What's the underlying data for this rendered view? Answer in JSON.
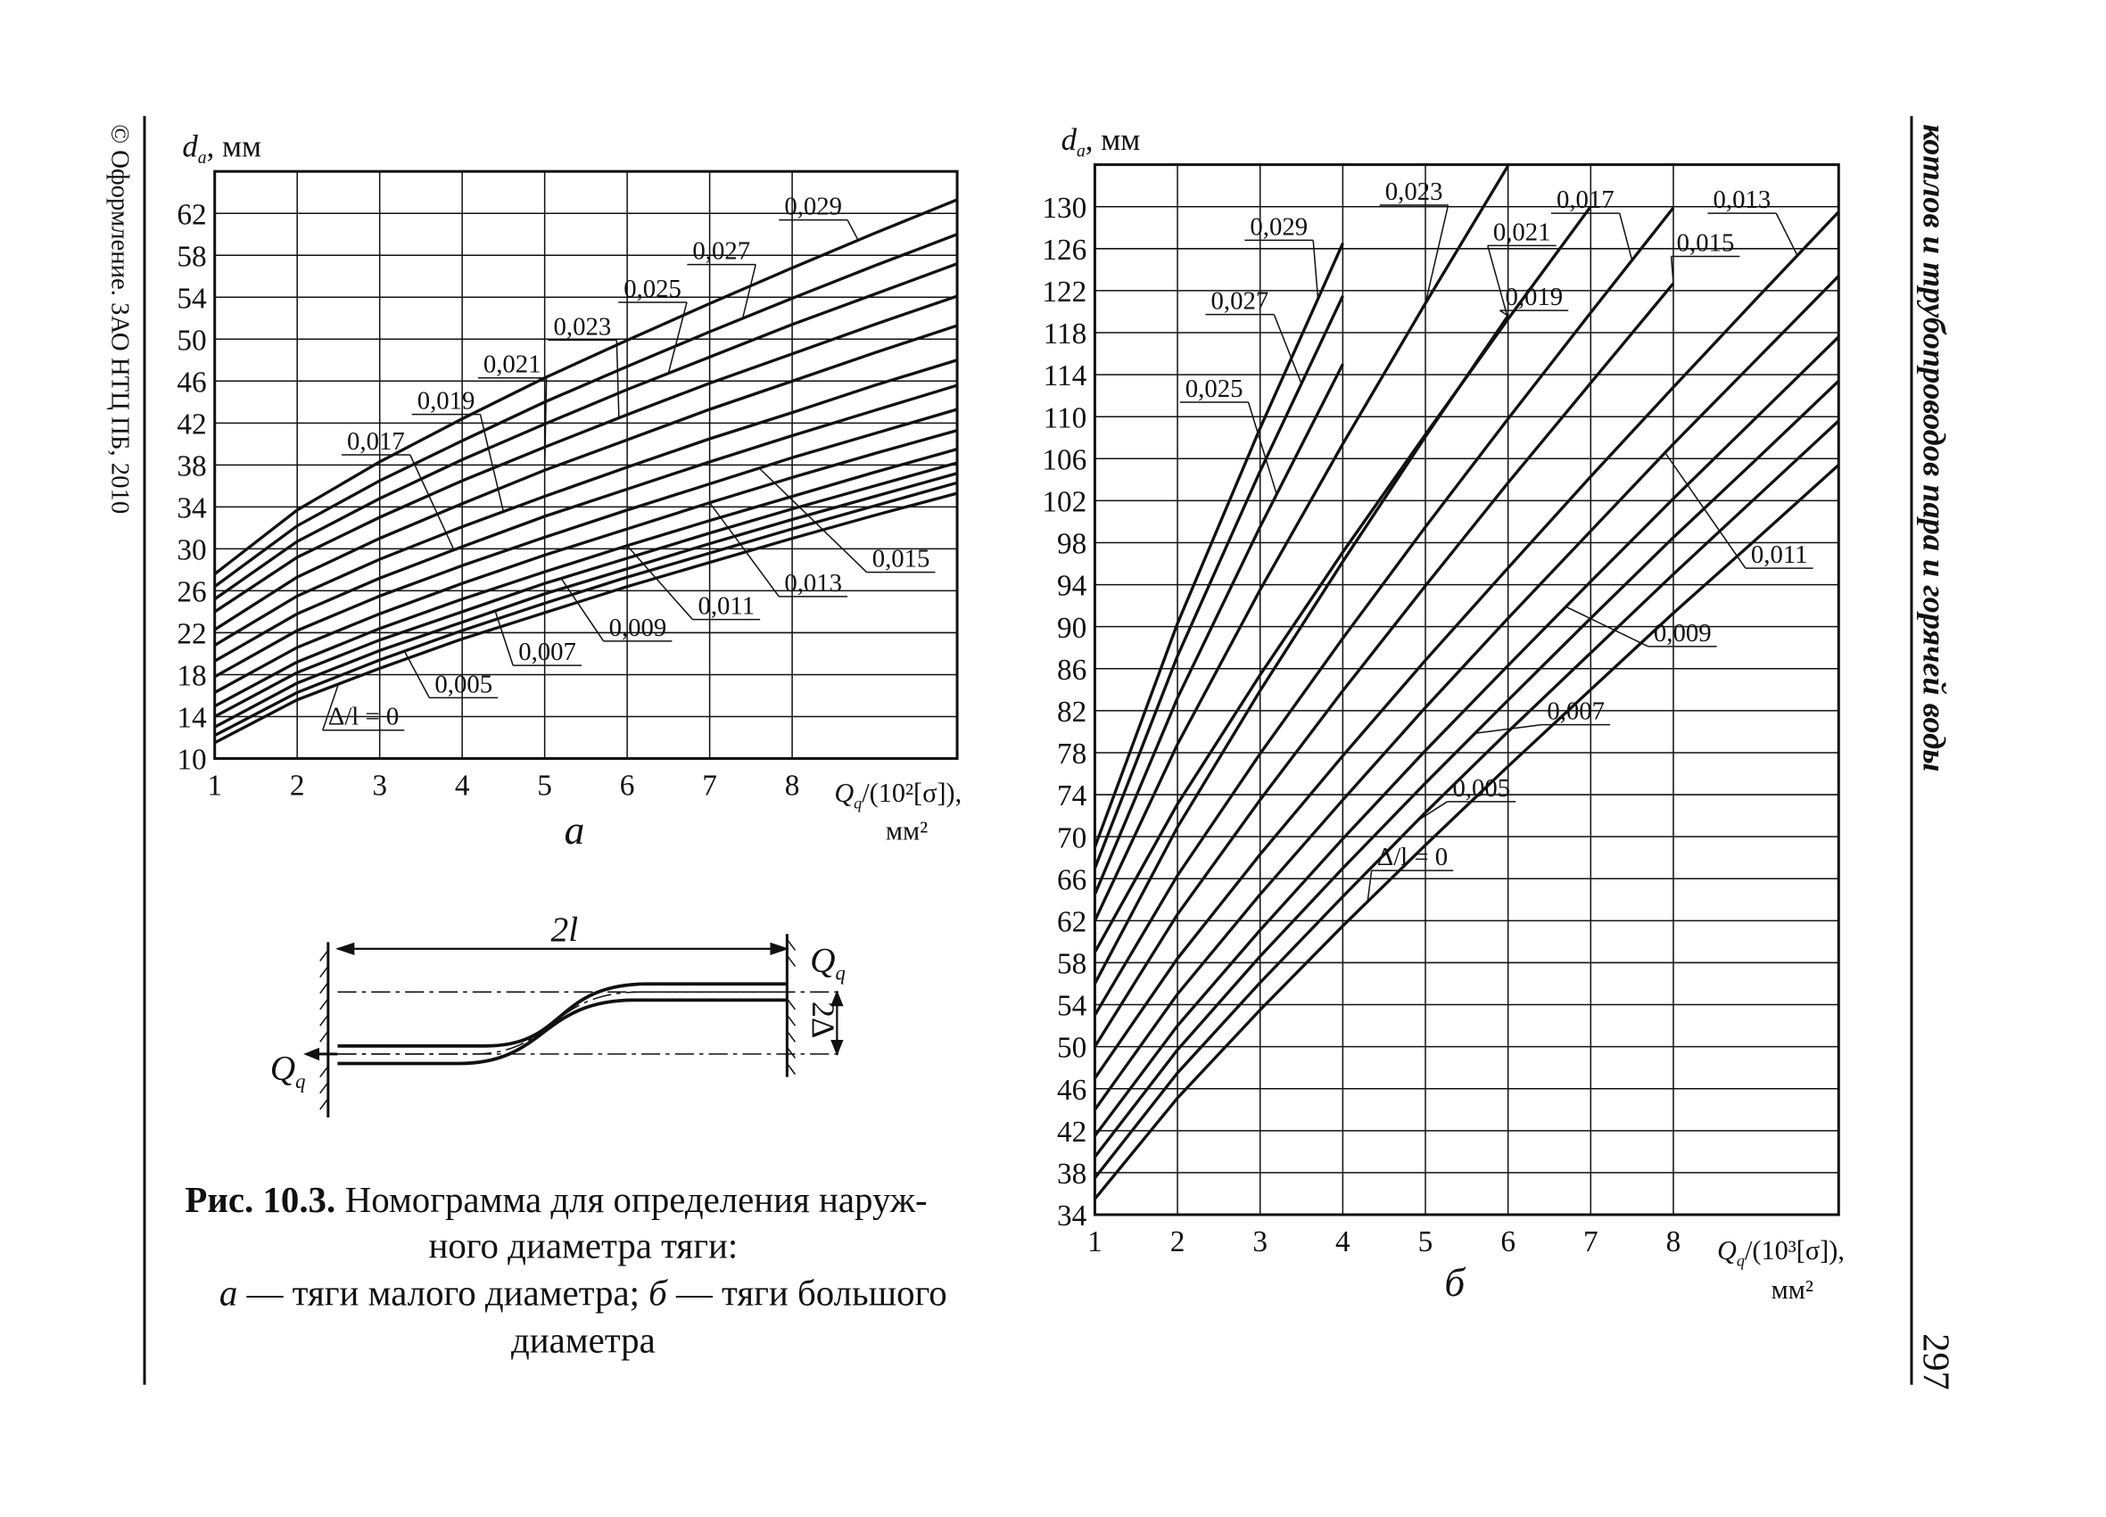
{
  "chart_data": [
    {
      "type": "line",
      "panel": "а",
      "ylabel": "d",
      "ylabel_sub": "a",
      "ylabel_unit": ", мм",
      "xlabel": "Q",
      "xlabel_sub": "q",
      "xlabel_rest": "/(10²[σ]),",
      "xlabel_unit": "мм²",
      "xlim": [
        1,
        10
      ],
      "ylim": [
        10,
        66
      ],
      "xticks": [
        1,
        2,
        3,
        4,
        5,
        6,
        7,
        8
      ],
      "yticks": [
        10,
        14,
        18,
        22,
        26,
        30,
        34,
        38,
        42,
        46,
        50,
        54,
        58,
        62
      ],
      "grid": true,
      "color": "#111111",
      "x": [
        1,
        2,
        3,
        4,
        5,
        6,
        7,
        8,
        9,
        10
      ],
      "series": [
        {
          "name": "Δ/l = 0",
          "values": [
            11.5,
            15.6,
            18.6,
            21.4,
            23.9,
            26.4,
            28.7,
            31.0,
            33.2,
            35.3
          ]
        },
        {
          "name": "0,005",
          "values": [
            12.2,
            16.3,
            19.4,
            22.2,
            24.8,
            27.3,
            29.6,
            31.9,
            34.1,
            36.3
          ]
        },
        {
          "name": "0,007",
          "values": [
            13.0,
            17.2,
            20.3,
            23.0,
            25.7,
            28.1,
            30.5,
            32.8,
            35.0,
            37.2
          ]
        },
        {
          "name": "0,009",
          "values": [
            14.0,
            18.2,
            21.3,
            24.0,
            26.7,
            29.1,
            31.5,
            33.8,
            36.0,
            38.2
          ]
        },
        {
          "name": "0,011",
          "values": [
            15.0,
            19.2,
            22.4,
            25.2,
            27.8,
            30.3,
            32.7,
            35.0,
            37.3,
            39.5
          ]
        },
        {
          "name": "0,013",
          "values": [
            16.3,
            20.6,
            23.8,
            26.7,
            29.4,
            31.9,
            34.4,
            36.8,
            39.1,
            41.3
          ]
        },
        {
          "name": "0,015",
          "values": [
            17.8,
            22.2,
            25.5,
            28.4,
            31.1,
            33.7,
            36.2,
            38.7,
            41.0,
            43.3
          ]
        },
        {
          "name": "0,017",
          "values": [
            19.3,
            23.8,
            27.2,
            30.2,
            33.1,
            35.7,
            38.3,
            40.8,
            43.2,
            45.6
          ]
        },
        {
          "name": "0,019",
          "values": [
            20.8,
            25.5,
            29.0,
            32.1,
            35.0,
            37.8,
            40.5,
            43.0,
            45.6,
            48.0
          ]
        },
        {
          "name": "0,021",
          "values": [
            22.3,
            27.3,
            31.0,
            34.3,
            37.5,
            40.4,
            43.3,
            46.0,
            48.7,
            51.3
          ]
        },
        {
          "name": "0,023",
          "values": [
            24.0,
            29.2,
            33.0,
            36.5,
            39.7,
            42.8,
            45.8,
            48.6,
            51.4,
            54.1
          ]
        },
        {
          "name": "0,025",
          "values": [
            25.2,
            30.7,
            34.8,
            38.5,
            41.9,
            45.2,
            48.3,
            51.4,
            54.3,
            57.2
          ]
        },
        {
          "name": "0,027",
          "values": [
            26.4,
            32.2,
            36.5,
            40.3,
            44.0,
            47.4,
            50.7,
            53.9,
            57.0,
            60.0
          ]
        },
        {
          "name": "0,029",
          "values": [
            27.6,
            33.7,
            38.3,
            42.4,
            46.3,
            49.9,
            53.4,
            56.8,
            60.1,
            63.3
          ]
        }
      ]
    },
    {
      "type": "line",
      "panel": "б",
      "ylabel": "d",
      "ylabel_sub": "a",
      "ylabel_unit": ", мм",
      "xlabel": "Q",
      "xlabel_sub": "q",
      "xlabel_rest": "/(10³[σ]),",
      "xlabel_unit": "мм²",
      "xlim": [
        1,
        10
      ],
      "ylim": [
        34,
        134
      ],
      "xticks": [
        1,
        2,
        3,
        4,
        5,
        6,
        7,
        8
      ],
      "yticks": [
        34,
        38,
        42,
        46,
        50,
        54,
        58,
        62,
        66,
        70,
        74,
        78,
        82,
        86,
        90,
        94,
        98,
        102,
        106,
        110,
        114,
        118,
        122,
        126,
        130
      ],
      "grid": true,
      "color": "#111111",
      "x": [
        1,
        2,
        3,
        4,
        5,
        6,
        7,
        8,
        9,
        10
      ],
      "series": [
        {
          "name": "Δ/l = 0",
          "values": [
            35.5,
            45.1,
            53.5,
            61.5,
            69.2,
            76.7,
            84.0,
            91.3,
            98.3,
            105.4
          ]
        },
        {
          "name": "0,005",
          "values": [
            37.5,
            47.5,
            56.1,
            64.3,
            72.3,
            80.0,
            87.5,
            95.0,
            102.3,
            109.6
          ]
        },
        {
          "name": "0,007",
          "values": [
            39.5,
            49.7,
            58.6,
            67.0,
            75.1,
            83.0,
            90.8,
            98.5,
            105.9,
            113.4
          ]
        },
        {
          "name": "0,009",
          "values": [
            41.5,
            52.0,
            61.1,
            69.8,
            78.2,
            86.3,
            94.3,
            102.2,
            109.9,
            117.6
          ]
        },
        {
          "name": "0,011",
          "values": [
            44.0,
            55.0,
            64.5,
            73.5,
            82.3,
            90.8,
            99.1,
            107.4,
            115.4,
            123.4
          ]
        },
        {
          "name": "0,013",
          "values": [
            47.0,
            58.4,
            68.3,
            77.7,
            86.8,
            95.6,
            104.3,
            112.8,
            121.2,
            129.5
          ]
        },
        {
          "name": "0,015",
          "values": [
            50.0,
            62.6,
            73.5,
            83.9,
            93.9,
            103.7,
            113.2,
            122.7,
            null,
            null
          ]
        },
        {
          "name": "0,017",
          "values": [
            53.0,
            66.3,
            77.9,
            88.9,
            99.5,
            109.8,
            119.9,
            129.9,
            null,
            null
          ]
        },
        {
          "name": "0,019",
          "values": [
            56.0,
            70.9,
            83.9,
            96.2,
            108.1,
            119.6,
            null,
            null,
            null,
            null
          ]
        },
        {
          "name": "0,021",
          "values": [
            59.0,
            73.1,
            85.4,
            97.1,
            108.3,
            119.3,
            130.0,
            null,
            null,
            null
          ]
        },
        {
          "name": "0,023",
          "values": [
            62.0,
            78.8,
            93.5,
            107.4,
            120.8,
            133.9,
            null,
            null,
            null,
            null
          ]
        },
        {
          "name": "0,025",
          "values": [
            64.5,
            83.2,
            99.5,
            115.0,
            null,
            null,
            null,
            null,
            null,
            null
          ]
        },
        {
          "name": "0,027",
          "values": [
            67.0,
            87.2,
            104.8,
            121.5,
            null,
            null,
            null,
            null,
            null,
            null
          ]
        },
        {
          "name": "0,029",
          "values": [
            69.0,
            90.3,
            108.9,
            126.5,
            null,
            null,
            null,
            null,
            null,
            null
          ]
        }
      ]
    }
  ],
  "diagram": {
    "length_label": "2l",
    "force_label": "Q",
    "force_sub": "q",
    "offset_label": "2Δ"
  },
  "caption": {
    "label": "Рис. 10.3.",
    "lines": [
      "Номограмма для определения наруж-",
      "ного диаметра тяги:"
    ],
    "legend_parts": [
      "а",
      " — тяги малого диаметра; ",
      "б",
      " — тяги большого"
    ],
    "last_line": "диаметра"
  },
  "copyright": "© Оформление. ЗАО НТЦ ПБ, 2010",
  "running_head": "котлов и трубопроводов пара и горячей воды",
  "page_number": "297"
}
